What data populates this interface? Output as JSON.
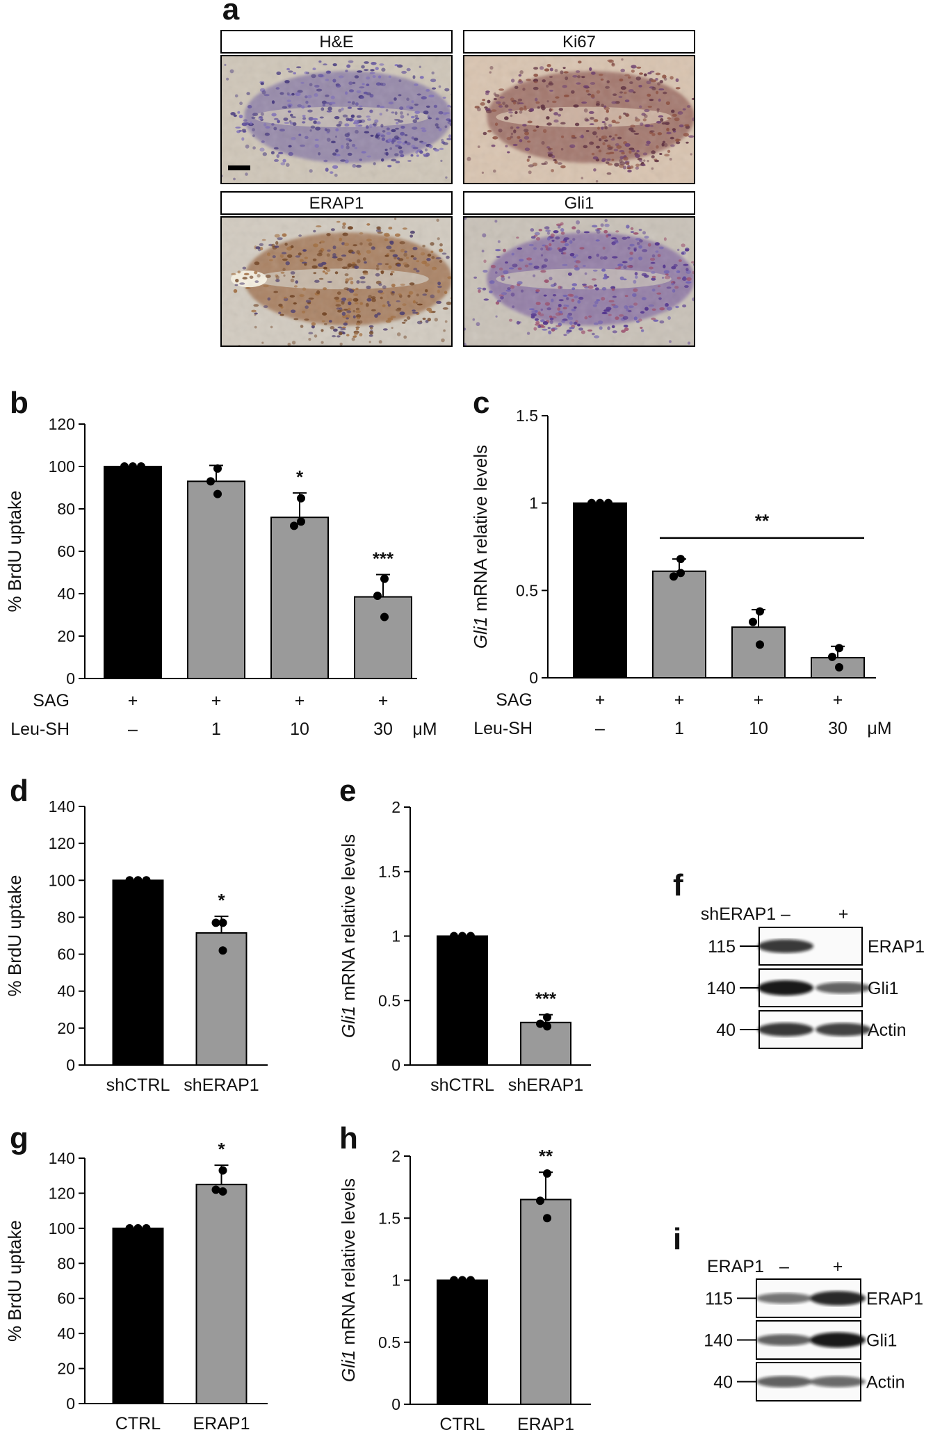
{
  "colors": {
    "black_bar": "#000000",
    "grey_bar": "#9a9a9a",
    "hist_stain_blue": "#5a4a8c",
    "hist_stain_brown": "#8a5a3a",
    "hist_background": "#d8cfc0"
  },
  "panel_a": {
    "letter": "a",
    "images": [
      {
        "title": "H&E",
        "style": "he"
      },
      {
        "title": "Ki67",
        "style": "ki67"
      },
      {
        "title": "ERAP1",
        "style": "erap1"
      },
      {
        "title": "Gli1",
        "style": "gli1"
      }
    ]
  },
  "chart_data": [
    {
      "id": "b",
      "letter": "b",
      "type": "bar",
      "ylabel": "% BrdU uptake",
      "ylabel_italic": "",
      "ylim": [
        0,
        120
      ],
      "yticks": [
        "0",
        "20",
        "40",
        "60",
        "80",
        "100",
        "120"
      ],
      "categories": [
        "–",
        "1",
        "10",
        "30"
      ],
      "values": [
        100,
        93,
        76,
        38.5
      ],
      "errors": [
        0,
        7.5,
        11.5,
        10.5
      ],
      "points": [
        [
          100,
          100,
          100
        ],
        [
          99,
          93,
          87
        ],
        [
          85,
          72,
          74
        ],
        [
          47,
          39,
          29
        ]
      ],
      "bar_colors": [
        "#000000",
        "#9a9a9a",
        "#9a9a9a",
        "#9a9a9a"
      ],
      "significance": [
        "",
        "",
        "*",
        "***"
      ],
      "conditions": [
        {
          "label": "SAG",
          "values": [
            "+",
            "+",
            "+",
            "+"
          ],
          "unit": ""
        },
        {
          "label": "Leu-SH",
          "values": [
            "–",
            "1",
            "10",
            "30"
          ],
          "unit": "μM"
        }
      ]
    },
    {
      "id": "c",
      "letter": "c",
      "type": "bar",
      "ylabel": " mRNA relative levels",
      "ylabel_italic": "Gli1",
      "ylim": [
        0,
        1.5
      ],
      "yticks": [
        "0",
        "0.5",
        "1",
        "1.5"
      ],
      "categories": [
        "–",
        "1",
        "10",
        "30"
      ],
      "values": [
        1.0,
        0.61,
        0.29,
        0.115
      ],
      "errors": [
        0,
        0.07,
        0.1,
        0.065
      ],
      "points": [
        [
          1,
          1,
          1
        ],
        [
          0.68,
          0.58,
          0.6
        ],
        [
          0.38,
          0.32,
          0.19
        ],
        [
          0.17,
          0.12,
          0.06
        ]
      ],
      "bar_colors": [
        "#000000",
        "#9a9a9a",
        "#9a9a9a",
        "#9a9a9a"
      ],
      "significance": [
        "",
        "",
        "",
        ""
      ],
      "bracket": {
        "from": 1,
        "to": 3,
        "y": 0.8,
        "label": "**"
      },
      "conditions": [
        {
          "label": "SAG",
          "values": [
            "+",
            "+",
            "+",
            "+"
          ],
          "unit": ""
        },
        {
          "label": "Leu-SH",
          "values": [
            "–",
            "1",
            "10",
            "30"
          ],
          "unit": "μM"
        }
      ]
    },
    {
      "id": "d",
      "letter": "d",
      "type": "bar",
      "ylabel": "% BrdU uptake",
      "ylabel_italic": "",
      "ylim": [
        0,
        140
      ],
      "yticks": [
        "0",
        "20",
        "40",
        "60",
        "80",
        "100",
        "120",
        "140"
      ],
      "categories": [
        "shCTRL",
        "shERAP1"
      ],
      "values": [
        100,
        71.5
      ],
      "errors": [
        0,
        9
      ],
      "points": [
        [
          100,
          100,
          100
        ],
        [
          77,
          77,
          62
        ]
      ],
      "bar_colors": [
        "#000000",
        "#9a9a9a"
      ],
      "significance": [
        "",
        "*"
      ]
    },
    {
      "id": "e",
      "letter": "e",
      "type": "bar",
      "ylabel": " mRNA relative levels",
      "ylabel_italic": "Gli1",
      "ylim": [
        0,
        2
      ],
      "yticks": [
        "0",
        "0.5",
        "1",
        "1.5",
        "2"
      ],
      "categories": [
        "shCTRL",
        "shERAP1"
      ],
      "values": [
        1.0,
        0.33
      ],
      "errors": [
        0,
        0.06
      ],
      "points": [
        [
          1,
          1,
          1
        ],
        [
          0.37,
          0.32,
          0.3
        ]
      ],
      "bar_colors": [
        "#000000",
        "#9a9a9a"
      ],
      "significance": [
        "",
        "***"
      ]
    },
    {
      "id": "g",
      "letter": "g",
      "type": "bar",
      "ylabel": "% BrdU uptake",
      "ylabel_italic": "",
      "ylim": [
        0,
        140
      ],
      "yticks": [
        "0",
        "20",
        "40",
        "60",
        "80",
        "100",
        "120",
        "140"
      ],
      "categories": [
        "CTRL",
        "ERAP1"
      ],
      "values": [
        100,
        125
      ],
      "errors": [
        0,
        11
      ],
      "points": [
        [
          100,
          100,
          100
        ],
        [
          133,
          122,
          121
        ]
      ],
      "bar_colors": [
        "#000000",
        "#9a9a9a"
      ],
      "significance": [
        "",
        "*"
      ]
    },
    {
      "id": "h",
      "letter": "h",
      "type": "bar",
      "ylabel": " mRNA relative levels",
      "ylabel_italic": "Gli1",
      "ylim": [
        0,
        2
      ],
      "yticks": [
        "0",
        "0.5",
        "1",
        "1.5",
        "2"
      ],
      "categories": [
        "CTRL",
        "ERAP1"
      ],
      "values": [
        1.0,
        1.65
      ],
      "errors": [
        0,
        0.22
      ],
      "points": [
        [
          1,
          1,
          1
        ],
        [
          1.86,
          1.64,
          1.5
        ]
      ],
      "bar_colors": [
        "#000000",
        "#9a9a9a"
      ],
      "significance": [
        "",
        "**"
      ]
    }
  ],
  "western_blots": [
    {
      "id": "f",
      "letter": "f",
      "treatment": "shERAP1",
      "lanes": [
        "–",
        "+"
      ],
      "rows": [
        {
          "mw": "115",
          "protein": "ERAP1",
          "intensities": [
            0.8,
            0.02
          ]
        },
        {
          "mw": "140",
          "protein": "Gli1",
          "intensities": [
            1.0,
            0.55
          ]
        },
        {
          "mw": "40",
          "protein": "Actin",
          "intensities": [
            0.8,
            0.75
          ]
        }
      ]
    },
    {
      "id": "i",
      "letter": "i",
      "treatment": "ERAP1",
      "lanes": [
        "–",
        "+"
      ],
      "rows": [
        {
          "mw": "115",
          "protein": "ERAP1",
          "intensities": [
            0.45,
            0.9
          ]
        },
        {
          "mw": "140",
          "protein": "Gli1",
          "intensities": [
            0.55,
            1.0
          ]
        },
        {
          "mw": "40",
          "protein": "Actin",
          "intensities": [
            0.55,
            0.5
          ]
        }
      ]
    }
  ]
}
